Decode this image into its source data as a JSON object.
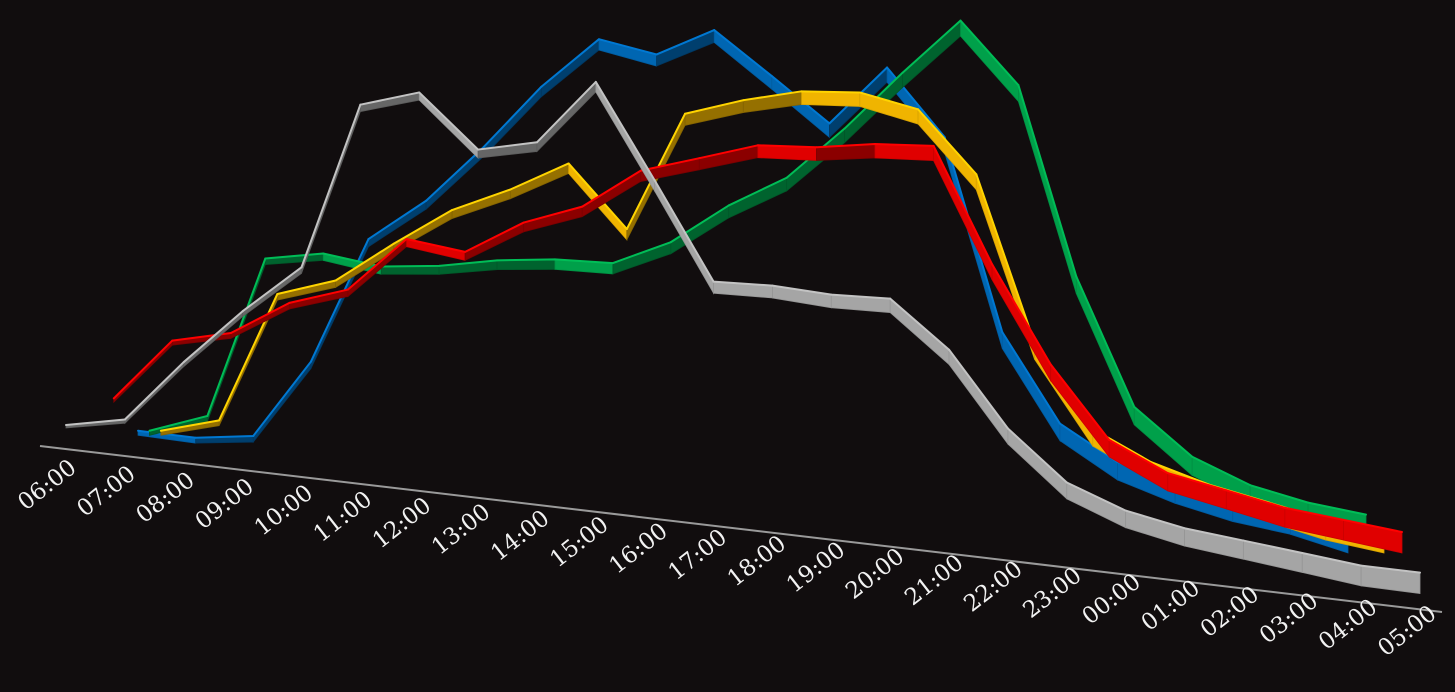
{
  "background": "#110d0e",
  "chart_data": {
    "type": "line",
    "variant": "3d-ribbon",
    "title": "",
    "xlabel": "",
    "ylabel": "",
    "grid": false,
    "legend": "none",
    "x_axis_color": "#9a9a9a",
    "tick_color": "#f2f2f2",
    "categories": [
      "06:00",
      "07:00",
      "08:00",
      "09:00",
      "10:00",
      "11:00",
      "12:00",
      "13:00",
      "14:00",
      "15:00",
      "16:00",
      "17:00",
      "18:00",
      "19:00",
      "20:00",
      "21:00",
      "22:00",
      "23:00",
      "00:00",
      "01:00",
      "02:00",
      "03:00",
      "04:00",
      "05:00"
    ],
    "ylim": [
      0,
      100
    ],
    "series": [
      {
        "color": "#0066b2",
        "values": [
          null,
          null,
          2,
          2,
          4,
          22,
          50,
          59,
          71,
          84,
          94,
          91,
          96,
          87,
          78,
          89,
          76,
          40,
          24,
          18,
          15,
          13,
          12,
          10
        ]
      },
      {
        "color": "#00a04a",
        "values": [
          null,
          null,
          2,
          7,
          44,
          46,
          44,
          45,
          47,
          48,
          48,
          53,
          61,
          67,
          77,
          88,
          98,
          86,
          51,
          28,
          20,
          16,
          14,
          13
        ]
      },
      {
        "color": "#f0b400",
        "values": [
          null,
          null,
          2,
          6,
          36,
          40,
          49,
          57,
          62,
          68,
          55,
          79,
          82,
          84,
          84,
          81,
          69,
          38,
          23,
          18,
          15,
          13,
          11,
          10
        ]
      },
      {
        "color": "#e00000",
        "values": [
          null,
          8,
          23,
          26,
          34,
          38,
          50,
          48,
          55,
          59,
          67,
          70,
          73,
          73,
          74,
          74,
          52,
          34,
          21,
          16,
          14,
          12,
          11,
          10
        ]
      },
      {
        "color": "#a5a5a5",
        "values": [
          0,
          3,
          18,
          31,
          42,
          79,
          82,
          70,
          72,
          85,
          65,
          45,
          45,
          44,
          44,
          35,
          21,
          12,
          8,
          6,
          5,
          4,
          3,
          3
        ]
      }
    ]
  }
}
